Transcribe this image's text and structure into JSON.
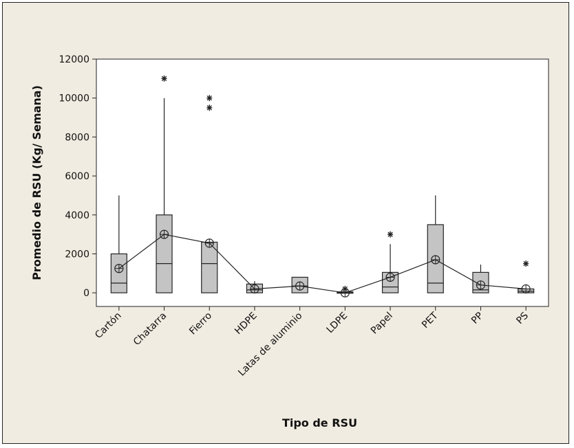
{
  "chart_data": {
    "type": "boxplot",
    "xlabel": "Tipo de RSU",
    "ylabel": "Promedio de RSU (Kg/ Semana)",
    "ylim": [
      -700,
      12000
    ],
    "yticks": [
      0,
      2000,
      4000,
      6000,
      8000,
      10000,
      12000
    ],
    "grid": false,
    "mean_connect_line": true,
    "colors": {
      "background": "#f1ece1",
      "plot_bg": "#ffffff",
      "box_fill": "#c4c4c4",
      "stroke": "#222222"
    },
    "categories": [
      "Cartón",
      "Chatarra",
      "Fierro",
      "HDPE",
      "Latas de aluminio",
      "LDPE",
      "Papel",
      "PET",
      "PP",
      "PS"
    ],
    "boxes": [
      {
        "min": 0,
        "q1": 0,
        "median": 500,
        "q3": 2000,
        "max": 5000,
        "mean": 1250,
        "outliers": []
      },
      {
        "min": 0,
        "q1": 0,
        "median": 1500,
        "q3": 4000,
        "max": 10000,
        "mean": 3000,
        "outliers": [
          11000
        ]
      },
      {
        "min": 0,
        "q1": 0,
        "median": 1500,
        "q3": 2600,
        "max": 2600,
        "mean": 2550,
        "outliers": [
          9500,
          10000
        ]
      },
      {
        "min": 0,
        "q1": 0,
        "median": 150,
        "q3": 450,
        "max": 600,
        "mean": 200,
        "outliers": []
      },
      {
        "min": 0,
        "q1": 0,
        "median": 350,
        "q3": 800,
        "max": 800,
        "mean": 350,
        "outliers": []
      },
      {
        "min": 0,
        "q1": 0,
        "median": 0,
        "q3": 50,
        "max": 100,
        "mean": 0,
        "outliers": [
          200
        ]
      },
      {
        "min": 0,
        "q1": 0,
        "median": 300,
        "q3": 1050,
        "max": 2500,
        "mean": 800,
        "outliers": [
          3000
        ]
      },
      {
        "min": 0,
        "q1": 0,
        "median": 500,
        "q3": 3500,
        "max": 5000,
        "mean": 1700,
        "outliers": []
      },
      {
        "min": 0,
        "q1": 0,
        "median": 150,
        "q3": 1050,
        "max": 1450,
        "mean": 400,
        "outliers": []
      },
      {
        "min": 0,
        "q1": 0,
        "median": 80,
        "q3": 200,
        "max": 200,
        "mean": 200,
        "outliers": [
          1500
        ]
      }
    ]
  }
}
